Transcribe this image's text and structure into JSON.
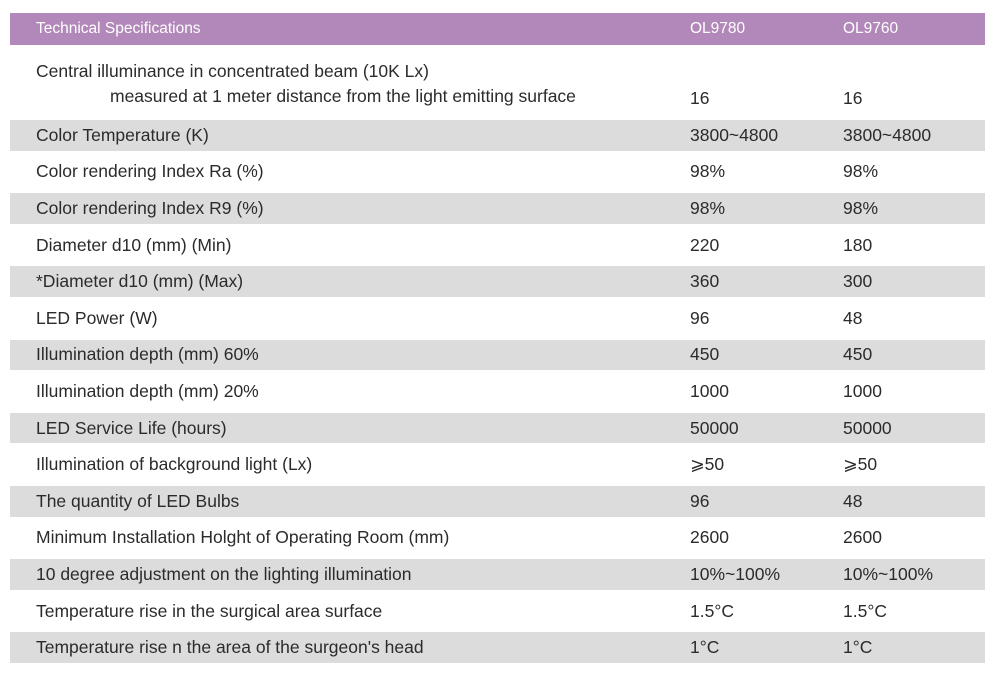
{
  "table": {
    "header": {
      "title": "Technical Specifications",
      "col1": "OL9780",
      "col2": "OL9760"
    },
    "rows": [
      {
        "label_line1": "Central illuminance in concentrated beam (10K Lx)",
        "label_line2": "measured at 1 meter distance from the light emitting surface",
        "v1": "16",
        "v2": "16",
        "shaded": false
      },
      {
        "label": "Color Temperature (K)",
        "v1": "3800~4800",
        "v2": "3800~4800",
        "shaded": true
      },
      {
        "label": "Color rendering Index Ra (%)",
        "v1": "98%",
        "v2": "98%",
        "shaded": false
      },
      {
        "label": "Color rendering Index R9 (%)",
        "v1": "98%",
        "v2": "98%",
        "shaded": true
      },
      {
        "label": "Diameter d10 (mm) (Min)",
        "v1": "220",
        "v2": "180",
        "shaded": false
      },
      {
        "label": "*Diameter d10 (mm) (Max)",
        "v1": "360",
        "v2": "300",
        "shaded": true
      },
      {
        "label": "LED Power (W)",
        "v1": "96",
        "v2": "48",
        "shaded": false
      },
      {
        "label": "Illumination depth (mm) 60%",
        "v1": "450",
        "v2": "450",
        "shaded": true
      },
      {
        "label": "Illumination depth (mm) 20%",
        "v1": "1000",
        "v2": "1000",
        "shaded": false
      },
      {
        "label": "LED Service Life (hours)",
        "v1": "50000",
        "v2": "50000",
        "shaded": true
      },
      {
        "label": "Illumination of background light (Lx)",
        "v1": "⩾50",
        "v2": "⩾50",
        "shaded": false
      },
      {
        "label": "The quantity of LED Bulbs",
        "v1": "96",
        "v2": "48",
        "shaded": true
      },
      {
        "label": "Minimum Installation Holght of Operating Room (mm)",
        "v1": "2600",
        "v2": "2600",
        "shaded": false
      },
      {
        "label": "10 degree adjustment on the lighting illumination",
        "v1": "10%~100%",
        "v2": "10%~100%",
        "shaded": true
      },
      {
        "label": "Temperature rise in the surgical area surface",
        "v1": "1.5°C",
        "v2": "1.5°C",
        "shaded": false
      },
      {
        "label": "Temperature rise n the area of the surgeon's head",
        "v1": "1°C",
        "v2": "1°C",
        "shaded": true
      }
    ],
    "colors": {
      "header_bg": "#b188b9",
      "header_text": "#ffffff",
      "shaded_row_bg": "#dcdcdc",
      "body_text": "#2b2b2b"
    }
  }
}
